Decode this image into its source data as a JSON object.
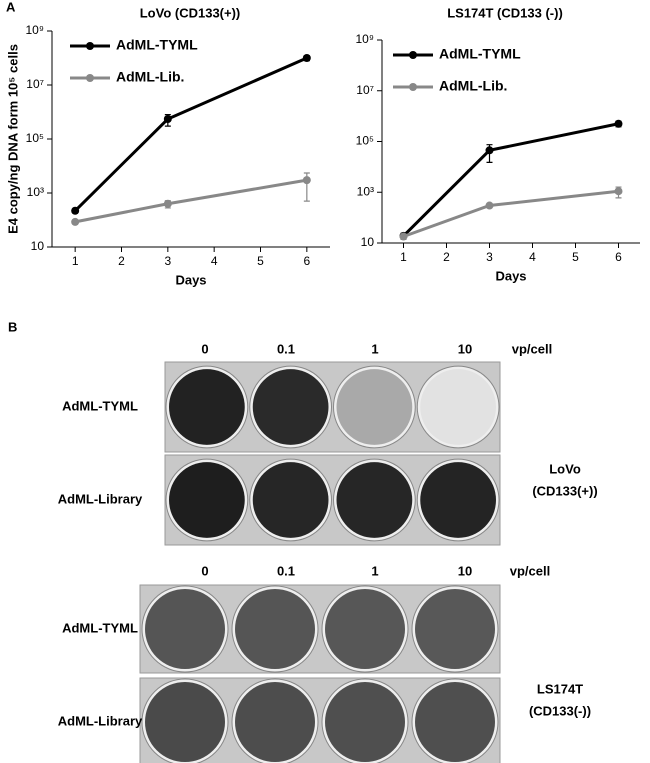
{
  "panel_a_label": "A",
  "chart_data": [
    {
      "type": "line",
      "title": "LoVo (CD133(+))",
      "x_label": "Days",
      "y_label": "E4 copy/ng DNA form 10⁵ cells",
      "xlim": [
        0.5,
        6.5
      ],
      "xticks": [
        1,
        2,
        3,
        4,
        5,
        6
      ],
      "ylim": [
        10,
        1000000000
      ],
      "log_y": true,
      "yticks": [
        10,
        {
          "value": 1000,
          "label": "10³"
        },
        {
          "value": 100000,
          "label": "10⁵"
        },
        {
          "value": 10000000,
          "label": "10⁷"
        },
        {
          "value": 1000000000,
          "label": "10⁹"
        }
      ],
      "legend": "upper left",
      "series": [
        {
          "name": "AdML-TYML",
          "color": "#000000",
          "x": [
            1,
            3,
            6
          ],
          "values": [
            220,
            550000,
            100000000
          ],
          "errors": [
            20,
            250000,
            20000000
          ]
        },
        {
          "name": "AdML-Lib.",
          "color": "#888888",
          "x": [
            1,
            3,
            6
          ],
          "values": [
            85,
            400,
            3000
          ],
          "errors": [
            8,
            120,
            2500
          ]
        }
      ]
    },
    {
      "type": "line",
      "title": "LS174T (CD133 (-))",
      "x_label": "Days",
      "xlim": [
        0.5,
        6.5
      ],
      "xticks": [
        1,
        2,
        3,
        4,
        5,
        6
      ],
      "ylim": [
        10,
        1000000000
      ],
      "log_y": true,
      "yticks": [
        10,
        {
          "value": 1000,
          "label": "10³"
        },
        {
          "value": 100000,
          "label": "10⁵"
        },
        {
          "value": 10000000,
          "label": "10⁷"
        },
        {
          "value": 1000000000,
          "label": "10⁹"
        }
      ],
      "legend": "upper left",
      "series": [
        {
          "name": "AdML-TYML",
          "color": "#000000",
          "x": [
            1,
            3,
            6
          ],
          "values": [
            19,
            45000,
            500000
          ],
          "errors": [
            5,
            30000,
            120000
          ]
        },
        {
          "name": "AdML-Lib.",
          "color": "#888888",
          "x": [
            1,
            3,
            6
          ],
          "values": [
            18,
            300,
            1100
          ],
          "errors": [
            4,
            40,
            500
          ]
        }
      ]
    }
  ],
  "panel_b": {
    "label": "B",
    "groups": [
      {
        "doses": [
          "0",
          "0.1",
          "1",
          "10"
        ],
        "unit": "vp/cell",
        "rows": [
          "AdML-TYML",
          "AdML-Library"
        ],
        "cell_line": "LoVo",
        "marker": "(CD133(+))"
      },
      {
        "doses": [
          "0",
          "0.1",
          "1",
          "10"
        ],
        "unit": "vp/cell",
        "rows": [
          "AdML-TYML",
          "AdML-Library"
        ],
        "cell_line": "LS174T",
        "marker": "(CD133(-))"
      }
    ]
  }
}
